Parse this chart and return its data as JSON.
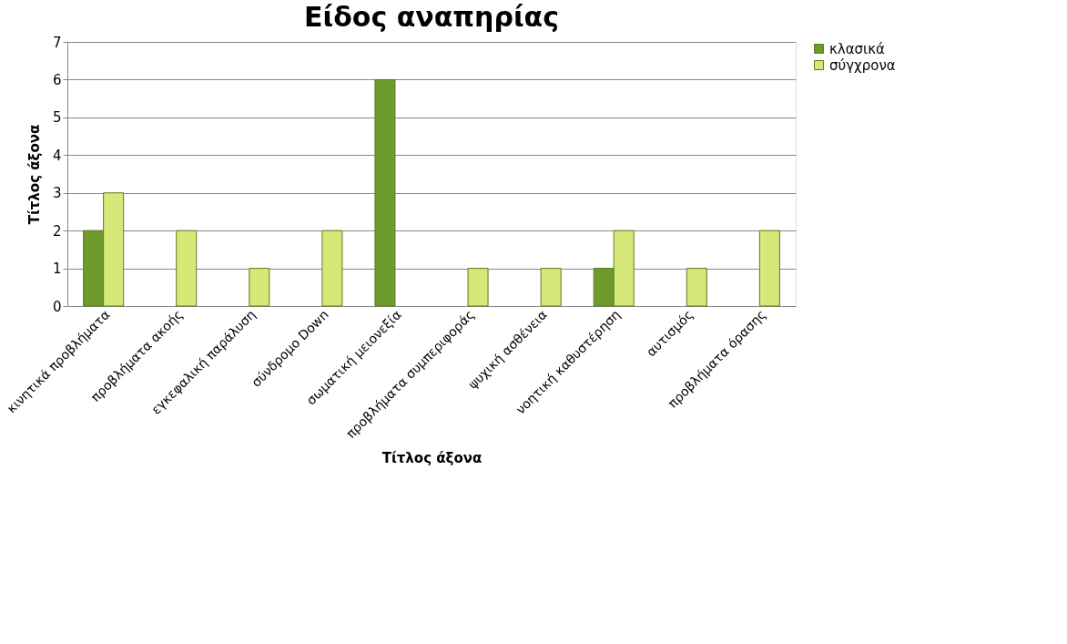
{
  "chart_data": {
    "type": "bar",
    "title": "Είδος αναπηρίας",
    "xlabel": "Τίτλος άξονα",
    "ylabel": "Τίτλος άξονα",
    "categories": [
      "κινητικά προβλήματα",
      "προβλήματα ακοής",
      "εγκεφαλική παράλυση",
      "σύνδρομο Down",
      "σωματική μειονεξία",
      "προβλήματα συμπεριφοράς",
      "ψυχική ασθένεια",
      "νοητική καθυστέρηση",
      "αυτισμός",
      "προβλήματα όρασης"
    ],
    "series": [
      {
        "name": "κλασικά",
        "color": "#6e9a2c",
        "values": [
          2,
          0,
          0,
          0,
          6,
          0,
          0,
          1,
          0,
          0
        ]
      },
      {
        "name": "σύγχρονα",
        "color": "#d6e878",
        "values": [
          3,
          2,
          1,
          2,
          0,
          1,
          1,
          2,
          1,
          2
        ]
      }
    ],
    "ylim": [
      0,
      7
    ],
    "yticks": [
      0,
      1,
      2,
      3,
      4,
      5,
      6,
      7
    ],
    "grid": "y",
    "legend": "right"
  }
}
